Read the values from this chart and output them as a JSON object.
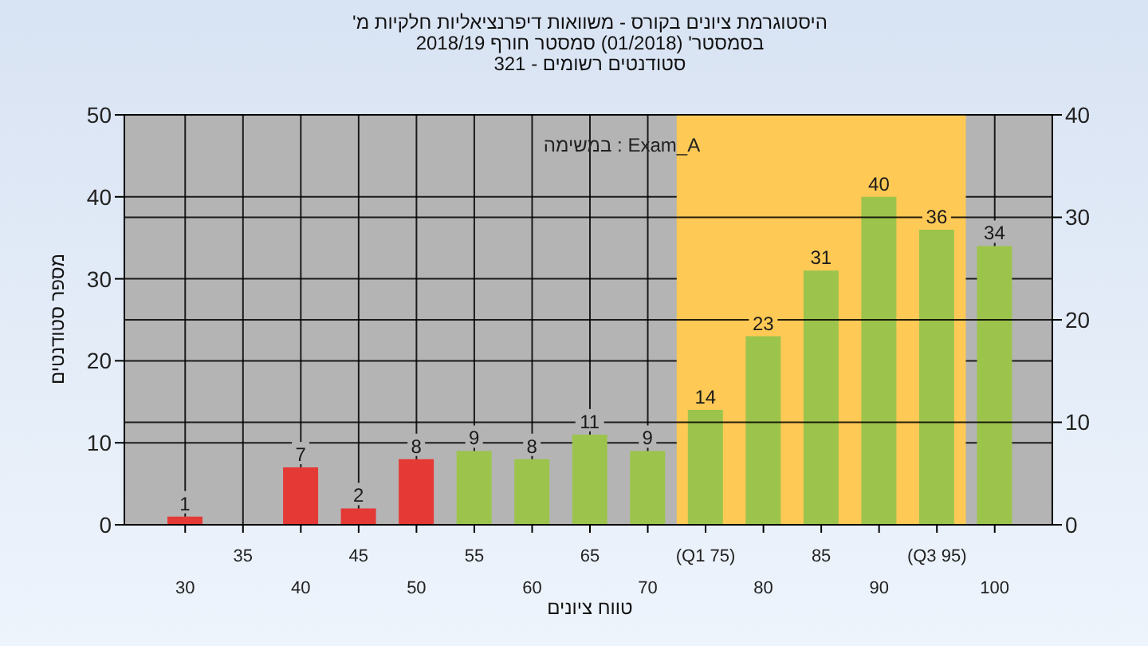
{
  "chart_data": {
    "type": "bar",
    "title": "היסטוגרמת ציונים בקורס - משוואות דיפרנציאליות חלקיות מ'",
    "subtitle": "בסמסטר' (01/2018) סמסטר חורף 2018/19\nסטודנטים רשומים - 321",
    "xlabel": "טווח ציונים",
    "ylabel": "מספר סטודנטים",
    "annotations": [
      "במשימה : Exam_A"
    ],
    "categories": [
      "30",
      "35",
      "40",
      "45",
      "50",
      "55",
      "60",
      "65",
      "70",
      "(Q1 75)",
      "80",
      "85",
      "90",
      "(Q3 95)",
      "100"
    ],
    "values": [
      1,
      0,
      7,
      2,
      8,
      9,
      8,
      11,
      9,
      14,
      23,
      31,
      40,
      36,
      34
    ],
    "value_labels": [
      "1",
      null,
      "7",
      "2",
      "8",
      "9",
      "8",
      "11",
      "9",
      "14",
      "23",
      "31",
      "40",
      "36",
      "34"
    ],
    "colors": [
      "#e53935",
      "#e53935",
      "#e53935",
      "#e53935",
      "#e53935",
      "#9cc44c",
      "#9cc44c",
      "#9cc44c",
      "#9cc44c",
      "#9cc44c",
      "#9cc44c",
      "#9cc44c",
      "#9cc44c",
      "#9cc44c",
      "#9cc44c"
    ],
    "bands": [
      {
        "axis": "x",
        "from": "(Q1 75)",
        "to": "(Q3 95)",
        "label": null,
        "color": "#ffc955"
      }
    ],
    "ylim": [
      0,
      50
    ],
    "yticks": [
      0,
      10,
      20,
      30,
      40,
      50
    ],
    "y2lim": [
      0,
      40
    ],
    "y2ticks": [
      0,
      10,
      20,
      30,
      40
    ],
    "grid": true
  }
}
